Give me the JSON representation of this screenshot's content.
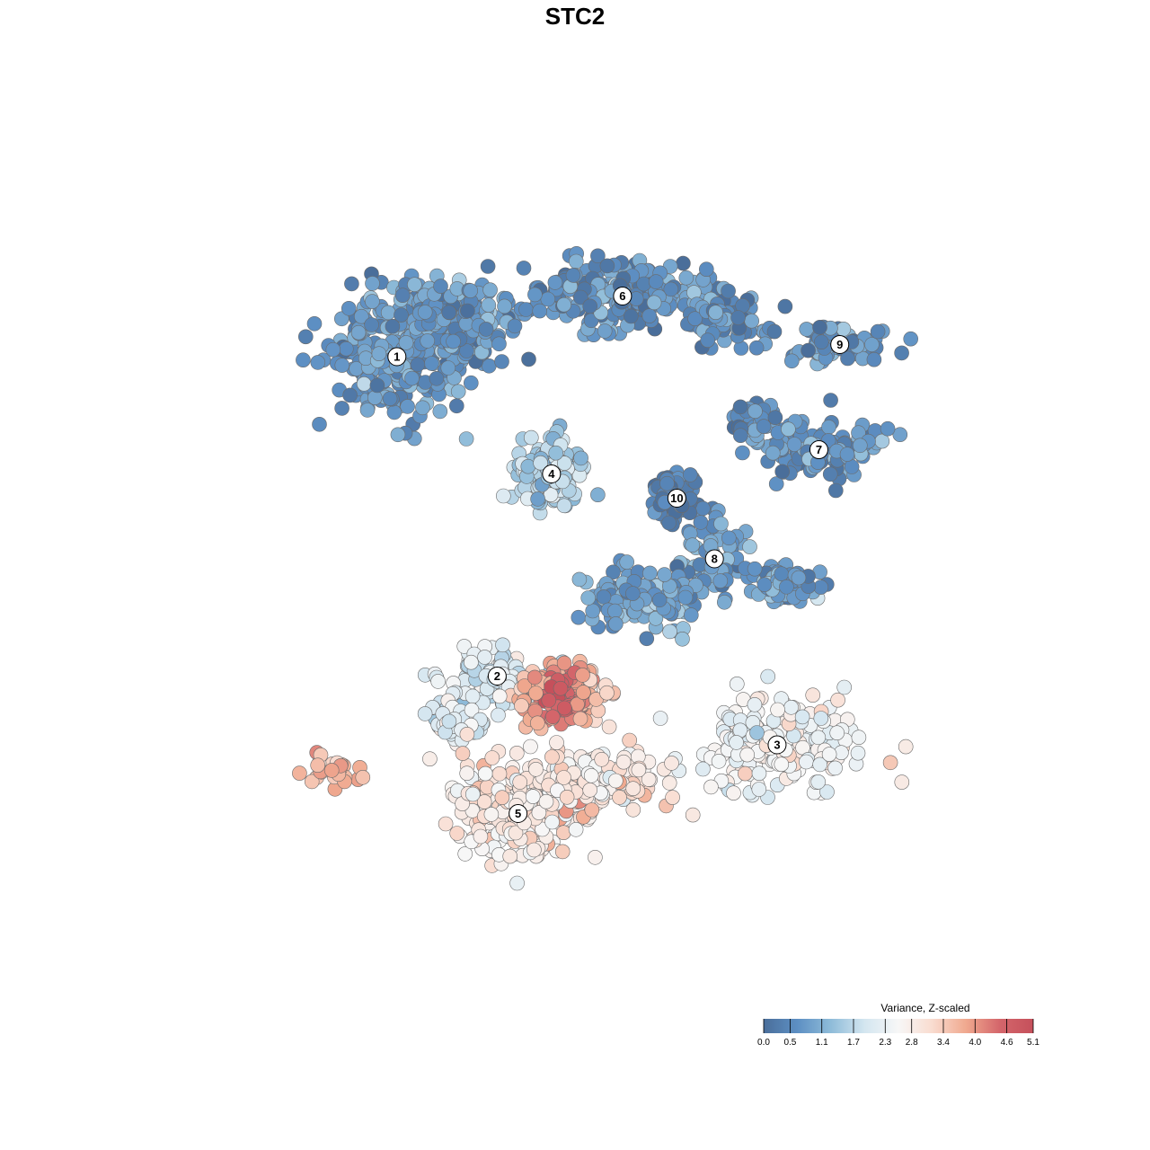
{
  "chart_data": {
    "type": "scatter",
    "title": "STC2",
    "xlabel": "",
    "ylabel": "",
    "axes_visible": false,
    "grid": false,
    "point_style": "circle, grey outline",
    "xlim": [
      -10,
      10
    ],
    "ylim": [
      -10,
      10
    ],
    "clusters": [
      {
        "label": "1",
        "x": -4.8,
        "y": 5.4,
        "mean_value": 0.7
      },
      {
        "label": "2",
        "x": -2.4,
        "y": -2.5,
        "mean_value": 2.0
      },
      {
        "label": "3",
        "x": 4.3,
        "y": -4.2,
        "mean_value": 2.5
      },
      {
        "label": "4",
        "x": -1.1,
        "y": 2.5,
        "mean_value": 1.6
      },
      {
        "label": "5",
        "x": -1.9,
        "y": -5.9,
        "mean_value": 2.9
      },
      {
        "label": "6",
        "x": 0.6,
        "y": 6.9,
        "mean_value": 0.6
      },
      {
        "label": "7",
        "x": 5.3,
        "y": 3.1,
        "mean_value": 0.7
      },
      {
        "label": "8",
        "x": 2.8,
        "y": 0.4,
        "mean_value": 0.8
      },
      {
        "label": "9",
        "x": 5.8,
        "y": 5.7,
        "mean_value": 0.6
      },
      {
        "label": "10",
        "x": 1.9,
        "y": 1.9,
        "mean_value": 0.4
      }
    ],
    "hotspot": {
      "x": -0.9,
      "y": -3.0,
      "max_value": 5.1
    },
    "legend": {
      "title": "Variance, Z-scaled",
      "position": "bottom-right",
      "min": 0.0,
      "max": 5.1,
      "ticks": [
        "0.0",
        "0.5",
        "1.1",
        "1.7",
        "2.3",
        "2.8",
        "3.4",
        "4.0",
        "4.6",
        "5.1"
      ],
      "colors": [
        "#4a6e9a",
        "#5d8fc3",
        "#8fbcd9",
        "#d4e6f0",
        "#f7f7f7",
        "#f9dcd0",
        "#f0a98f",
        "#d4666b",
        "#c5505b"
      ]
    }
  }
}
